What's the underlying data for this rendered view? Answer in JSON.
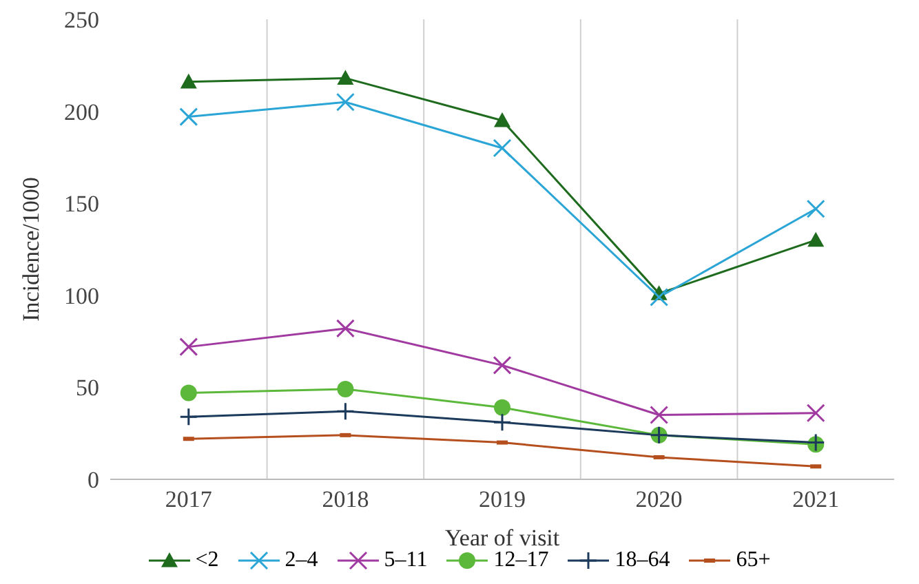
{
  "chart_data": {
    "type": "line",
    "xlabel": "Year of visit",
    "ylabel": "Incidence/1000",
    "categories": [
      "2017",
      "2018",
      "2019",
      "2020",
      "2021"
    ],
    "ylim": [
      0,
      250
    ],
    "yticks": [
      0,
      50,
      100,
      150,
      200,
      250
    ],
    "grid": "x",
    "legend": "bottom",
    "series": [
      {
        "name": "<2",
        "color": "#1e6b1e",
        "marker": "triangle",
        "values": [
          216,
          218,
          195,
          101,
          130
        ]
      },
      {
        "name": "2–4",
        "color": "#2aa5d6",
        "marker": "cross",
        "values": [
          197,
          205,
          180,
          99,
          147
        ]
      },
      {
        "name": "5–11",
        "color": "#a03aa0",
        "marker": "cross",
        "values": [
          72,
          82,
          62,
          35,
          36
        ]
      },
      {
        "name": "12–17",
        "color": "#5cb83a",
        "marker": "circle",
        "values": [
          47,
          49,
          39,
          24,
          19
        ]
      },
      {
        "name": "18–64",
        "color": "#1c3a5c",
        "marker": "plus",
        "values": [
          34,
          37,
          31,
          24,
          20
        ]
      },
      {
        "name": "65+",
        "color": "#b5501e",
        "marker": "square",
        "values": [
          22,
          24,
          20,
          12,
          7
        ]
      }
    ]
  }
}
